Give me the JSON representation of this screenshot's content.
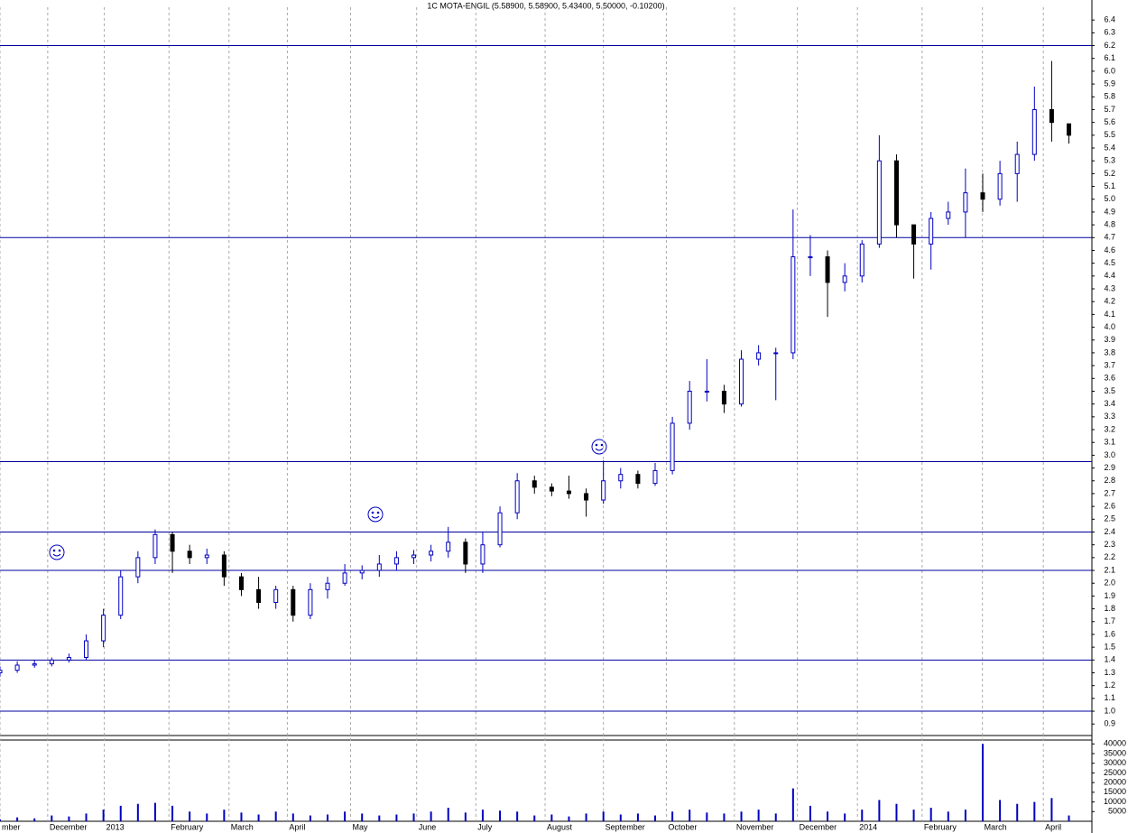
{
  "chart_data": {
    "type": "candlestick",
    "title": "1C MOTA-ENGIL (5.58900, 5.58900, 5.43400, 5.50000, -0.10200)",
    "x": [
      0,
      6,
      12,
      18,
      24,
      30,
      36,
      42,
      48,
      54,
      60,
      66,
      72,
      78,
      84,
      90,
      96,
      102,
      108,
      114,
      120,
      126,
      132,
      138,
      144,
      150,
      156,
      162,
      168,
      174,
      180,
      186,
      192,
      198,
      204,
      210,
      216,
      222,
      228,
      234,
      240,
      246,
      252,
      258,
      264,
      270,
      276,
      282,
      288,
      294,
      300,
      306,
      312,
      318,
      324,
      330,
      336,
      342,
      348,
      354,
      360,
      366,
      372
    ],
    "open": [
      1.3,
      1.32,
      1.36,
      1.37,
      1.4,
      1.42,
      1.55,
      1.75,
      2.05,
      2.2,
      2.38,
      2.25,
      2.2,
      2.22,
      2.05,
      1.95,
      1.85,
      1.95,
      1.75,
      1.95,
      2.0,
      2.08,
      2.1,
      2.15,
      2.2,
      2.22,
      2.25,
      2.32,
      2.15,
      2.3,
      2.55,
      2.8,
      2.75,
      2.72,
      2.7,
      2.65,
      2.8,
      2.85,
      2.78,
      2.88,
      3.25,
      3.5,
      3.5,
      3.4,
      3.75,
      3.8,
      3.8,
      4.55,
      4.55,
      4.35,
      4.4,
      4.65,
      5.3,
      4.8,
      4.65,
      4.85,
      4.9,
      5.05,
      5.0,
      5.2,
      5.35,
      5.7,
      5.589
    ],
    "high": [
      1.35,
      1.39,
      1.4,
      1.42,
      1.45,
      1.6,
      1.8,
      2.1,
      2.25,
      2.42,
      2.4,
      2.3,
      2.27,
      2.25,
      2.08,
      2.05,
      1.98,
      1.98,
      2.0,
      2.05,
      2.15,
      2.14,
      2.22,
      2.25,
      2.26,
      2.3,
      2.44,
      2.35,
      2.4,
      2.6,
      2.86,
      2.84,
      2.78,
      2.84,
      2.74,
      2.96,
      2.9,
      2.88,
      2.94,
      3.3,
      3.58,
      3.75,
      3.55,
      3.82,
      3.86,
      3.84,
      4.92,
      4.72,
      4.6,
      4.5,
      4.68,
      5.5,
      5.35,
      4.8,
      4.9,
      4.98,
      5.24,
      5.2,
      5.3,
      5.45,
      5.88,
      6.08,
      5.589
    ],
    "low": [
      1.27,
      1.3,
      1.34,
      1.35,
      1.38,
      1.4,
      1.5,
      1.72,
      2.0,
      2.15,
      2.08,
      2.15,
      2.15,
      1.98,
      1.9,
      1.8,
      1.8,
      1.7,
      1.72,
      1.88,
      1.98,
      2.03,
      2.05,
      2.1,
      2.15,
      2.17,
      2.2,
      2.08,
      2.08,
      2.28,
      2.5,
      2.7,
      2.68,
      2.66,
      2.52,
      2.62,
      2.74,
      2.74,
      2.76,
      2.85,
      3.2,
      3.42,
      3.33,
      3.38,
      3.7,
      3.43,
      3.75,
      4.4,
      4.08,
      4.28,
      4.35,
      4.62,
      4.7,
      4.38,
      4.45,
      4.8,
      4.7,
      4.9,
      4.95,
      4.98,
      5.3,
      5.45,
      5.434
    ],
    "close": [
      1.32,
      1.36,
      1.37,
      1.4,
      1.42,
      1.55,
      1.75,
      2.05,
      2.2,
      2.38,
      2.25,
      2.2,
      2.22,
      2.05,
      1.95,
      1.85,
      1.95,
      1.75,
      1.95,
      2.0,
      2.08,
      2.1,
      2.15,
      2.2,
      2.22,
      2.25,
      2.32,
      2.15,
      2.3,
      2.55,
      2.8,
      2.75,
      2.72,
      2.7,
      2.65,
      2.8,
      2.85,
      2.78,
      2.88,
      3.25,
      3.5,
      3.5,
      3.4,
      3.75,
      3.8,
      3.8,
      4.55,
      4.55,
      4.35,
      4.4,
      4.65,
      5.3,
      4.8,
      4.65,
      4.85,
      4.9,
      5.05,
      5.0,
      5.2,
      5.35,
      5.7,
      5.6,
      5.5
    ],
    "up_color": "#0000c0",
    "down_color": "#000000",
    "xlim": [
      0,
      380
    ],
    "xticks": [
      {
        "value": 0,
        "label": "mber"
      },
      {
        "value": 16.6,
        "label": "December"
      },
      {
        "value": 36.3,
        "label": "2013"
      },
      {
        "value": 58.8,
        "label": "February"
      },
      {
        "value": 79.7,
        "label": "March"
      },
      {
        "value": 100,
        "label": "April"
      },
      {
        "value": 122,
        "label": "May"
      },
      {
        "value": 145,
        "label": "June"
      },
      {
        "value": 165.6,
        "label": "July"
      },
      {
        "value": 189.7,
        "label": "August"
      },
      {
        "value": 210,
        "label": "September"
      },
      {
        "value": 231.9,
        "label": "October"
      },
      {
        "value": 255.6,
        "label": "November"
      },
      {
        "value": 277.5,
        "label": "December"
      },
      {
        "value": 298.4,
        "label": "2014"
      },
      {
        "value": 320.9,
        "label": "February"
      },
      {
        "value": 341.9,
        "label": "March"
      },
      {
        "value": 363.1,
        "label": "April"
      }
    ],
    "ylim": [
      0.81,
      6.5
    ],
    "yticks": [
      0.9,
      {
        "value": 1,
        "label": "1.0"
      },
      1.1,
      1.2,
      1.3,
      1.4,
      1.5,
      1.6,
      1.7,
      1.8,
      1.9,
      {
        "value": 2,
        "label": "2.0"
      },
      2.1,
      2.2,
      2.3,
      2.4,
      2.5,
      2.6,
      2.7,
      2.8,
      2.9,
      {
        "value": 3,
        "label": "3.0"
      },
      3.1,
      3.2,
      3.3,
      3.4,
      3.5,
      3.6,
      3.7,
      3.8,
      3.9,
      {
        "value": 4,
        "label": "4.0"
      },
      4.1,
      4.2,
      4.3,
      4.4,
      4.5,
      4.6,
      4.7,
      4.8,
      4.9,
      {
        "value": 5,
        "label": "5.0"
      },
      5.1,
      5.2,
      5.3,
      5.4,
      5.5,
      5.6,
      5.7,
      5.8,
      5.9,
      {
        "value": 6,
        "label": "6.0"
      },
      6.1,
      6.2,
      6.3,
      6.4
    ],
    "hlines": [
      6.2,
      4.7,
      2.95,
      2.4,
      2.1,
      1.4,
      1.0
    ],
    "hline_color": "#0000a0",
    "volume": {
      "values": [
        1000,
        2000,
        1500,
        3000,
        2500,
        4000,
        6000,
        8000,
        9000,
        9500,
        8000,
        5000,
        4000,
        6000,
        4500,
        3500,
        5000,
        4000,
        3000,
        3500,
        5000,
        4000,
        3000,
        3500,
        4000,
        5000,
        7000,
        4500,
        6000,
        5500,
        5000,
        3000,
        3500,
        2500,
        4000,
        5000,
        3500,
        4000,
        3000,
        5000,
        6000,
        4500,
        4000,
        5000,
        6000,
        4000,
        17000,
        8000,
        5000,
        4000,
        6000,
        11000,
        9000,
        6000,
        7000,
        5000,
        6000,
        40000,
        11000,
        9000,
        10000,
        12000,
        3000
      ],
      "color": "#0000c0",
      "ylim": [
        0,
        42000
      ],
      "yticks": [
        5000,
        10000,
        15000,
        20000,
        25000,
        30000,
        35000,
        40000
      ]
    }
  }
}
